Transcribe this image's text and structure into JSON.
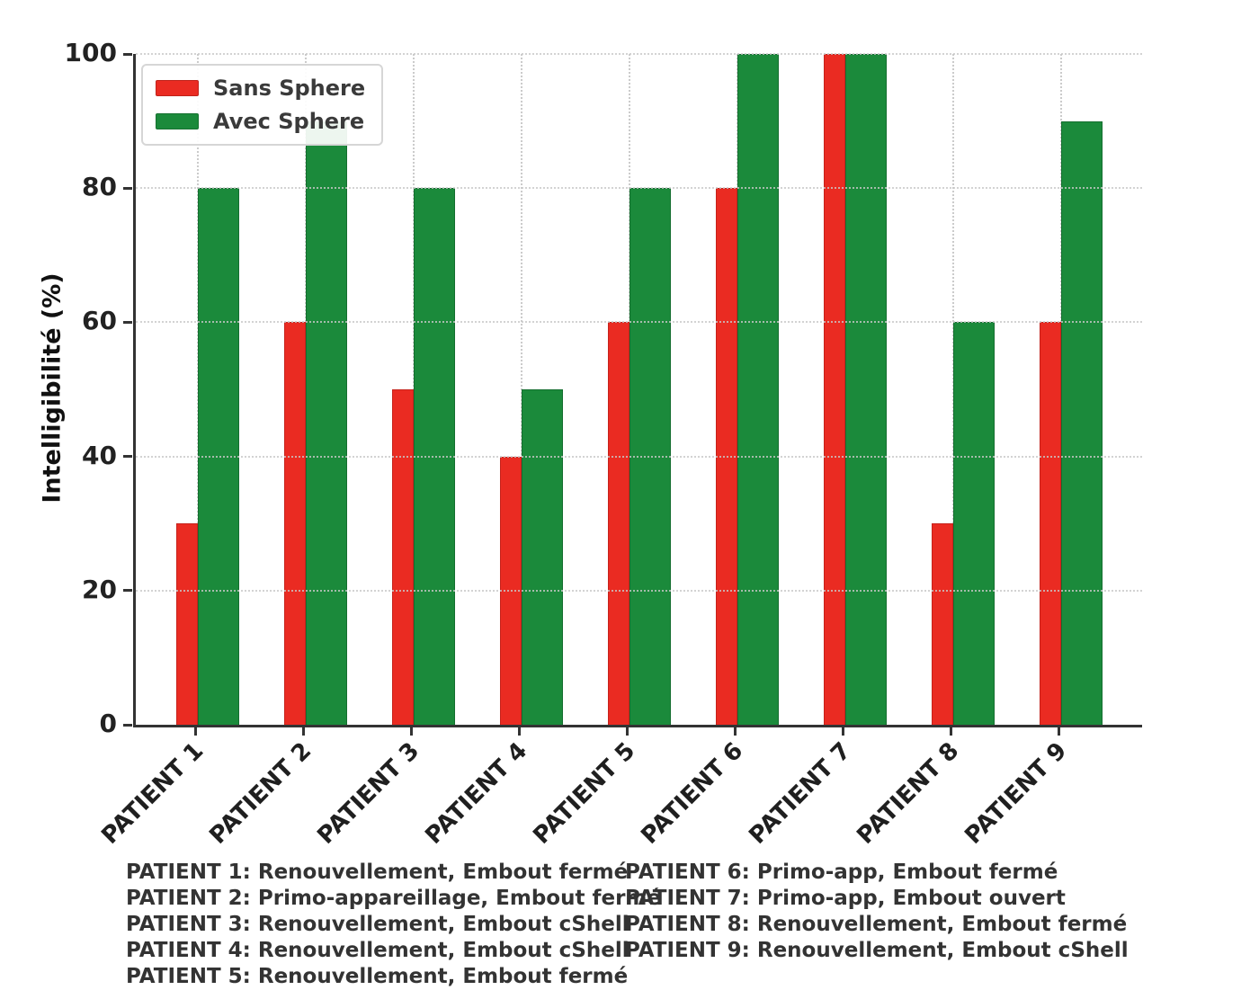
{
  "chart_data": {
    "type": "bar",
    "categories": [
      "PATIENT 1",
      "PATIENT 2",
      "PATIENT 3",
      "PATIENT 4",
      "PATIENT 5",
      "PATIENT 6",
      "PATIENT 7",
      "PATIENT 8",
      "PATIENT 9"
    ],
    "series": [
      {
        "name": "Sans Sphere",
        "color": "#ea2b22",
        "edge": "#c6221b",
        "values": [
          30,
          60,
          50,
          40,
          60,
          80,
          100,
          30,
          60
        ]
      },
      {
        "name": "Avec Sphere",
        "color": "#1b8a3b",
        "edge": "#146e2f",
        "values": [
          80,
          90,
          80,
          50,
          80,
          100,
          100,
          60,
          90
        ]
      }
    ],
    "title": "",
    "xlabel": "",
    "ylabel": "Intelligibilité (%)",
    "ylim": [
      0,
      100
    ],
    "yticks": [
      0,
      20,
      40,
      60,
      80,
      100
    ],
    "grid": "both-dotted",
    "legend_position": "upper-left"
  },
  "footnotes": {
    "left": [
      "PATIENT 1: Renouvellement, Embout fermé",
      "PATIENT 2: Primo-appareillage, Embout fermé",
      "PATIENT 3: Renouvellement, Embout cShell",
      "PATIENT 4: Renouvellement, Embout cShell",
      "PATIENT 5: Renouvellement, Embout fermé"
    ],
    "right": [
      "PATIENT 6: Primo-app, Embout fermé",
      "PATIENT 7: Primo-app, Embout ouvert",
      "PATIENT 8: Renouvellement, Embout fermé",
      "PATIENT 9: Renouvellement, Embout cShell"
    ]
  },
  "colors": {
    "axis": "#333333",
    "grid": "#c9c9c9",
    "background": "#ffffff",
    "tick_text": "#222222",
    "footnote_text": "#333333"
  }
}
